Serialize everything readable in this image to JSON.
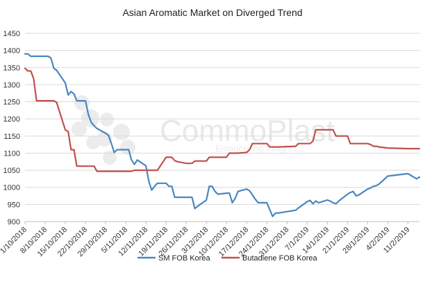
{
  "chart_data": {
    "type": "line",
    "title": "Asian Aromatic Market on Diverged Trend",
    "xlabel": "",
    "ylabel": "",
    "ylim": [
      900,
      1450
    ],
    "yticks": [
      900,
      950,
      1000,
      1050,
      1100,
      1150,
      1200,
      1250,
      1300,
      1350,
      1400,
      1450
    ],
    "xlim": [
      "2018-10-01",
      "2019-02-15"
    ],
    "xtick_labels": [
      "1/10/2018",
      "8/10/2018",
      "15/10/2018",
      "22/10/2018",
      "29/10/2018",
      "5/11/2018",
      "12/11/2018",
      "19/11/2018",
      "26/11/2018",
      "3/12/2018",
      "10/12/2018",
      "17/12/2018",
      "24/12/2018",
      "31/12/2018",
      "7/1/2019",
      "14/1/2019",
      "21/1/2019",
      "28/1/2019",
      "4/2/2019",
      "11/2/2019"
    ],
    "xtick_dates": [
      "2018-10-01",
      "2018-10-08",
      "2018-10-15",
      "2018-10-22",
      "2018-10-29",
      "2018-11-05",
      "2018-11-12",
      "2018-11-19",
      "2018-11-26",
      "2018-12-03",
      "2018-12-10",
      "2018-12-17",
      "2018-12-24",
      "2018-12-31",
      "2019-01-07",
      "2019-01-14",
      "2019-01-21",
      "2019-01-28",
      "2019-02-04",
      "2019-02-11"
    ],
    "grid": true,
    "legend": "bottom",
    "watermark": {
      "text": "CommoPlast",
      "subtext": "Engineering Insights"
    },
    "series": [
      {
        "name": "SM FOB Korea",
        "color": "#4a86c0",
        "points": [
          [
            "2018-10-01",
            1390
          ],
          [
            "2018-10-02",
            1390
          ],
          [
            "2018-10-03",
            1383
          ],
          [
            "2018-10-04",
            1383
          ],
          [
            "2018-10-05",
            1383
          ],
          [
            "2018-10-08",
            1383
          ],
          [
            "2018-10-09",
            1383
          ],
          [
            "2018-10-10",
            1378
          ],
          [
            "2018-10-11",
            1348
          ],
          [
            "2018-10-12",
            1342
          ],
          [
            "2018-10-15",
            1305
          ],
          [
            "2018-10-16",
            1270
          ],
          [
            "2018-10-17",
            1280
          ],
          [
            "2018-10-18",
            1273
          ],
          [
            "2018-10-19",
            1253
          ],
          [
            "2018-10-22",
            1253
          ],
          [
            "2018-10-23",
            1213
          ],
          [
            "2018-10-24",
            1190
          ],
          [
            "2018-10-25",
            1180
          ],
          [
            "2018-10-26",
            1172
          ],
          [
            "2018-10-29",
            1158
          ],
          [
            "2018-10-30",
            1152
          ],
          [
            "2018-10-31",
            1128
          ],
          [
            "2018-11-01",
            1102
          ],
          [
            "2018-11-02",
            1110
          ],
          [
            "2018-11-05",
            1110
          ],
          [
            "2018-11-06",
            1110
          ],
          [
            "2018-11-07",
            1080
          ],
          [
            "2018-11-08",
            1067
          ],
          [
            "2018-11-09",
            1080
          ],
          [
            "2018-11-12",
            1063
          ],
          [
            "2018-11-13",
            1018
          ],
          [
            "2018-11-14",
            992
          ],
          [
            "2018-11-15",
            1003
          ],
          [
            "2018-11-16",
            1012
          ],
          [
            "2018-11-19",
            1012
          ],
          [
            "2018-11-20",
            1003
          ],
          [
            "2018-11-21",
            1003
          ],
          [
            "2018-11-22",
            971
          ],
          [
            "2018-11-23",
            971
          ],
          [
            "2018-11-26",
            971
          ],
          [
            "2018-11-27",
            971
          ],
          [
            "2018-11-28",
            971
          ],
          [
            "2018-11-29",
            938
          ],
          [
            "2018-11-30",
            945
          ],
          [
            "2018-12-03",
            963
          ],
          [
            "2018-12-04",
            1003
          ],
          [
            "2018-12-05",
            1003
          ],
          [
            "2018-12-06",
            988
          ],
          [
            "2018-12-07",
            980
          ],
          [
            "2018-12-10",
            983
          ],
          [
            "2018-12-11",
            983
          ],
          [
            "2018-12-12",
            955
          ],
          [
            "2018-12-13",
            968
          ],
          [
            "2018-12-14",
            988
          ],
          [
            "2018-12-17",
            995
          ],
          [
            "2018-12-18",
            990
          ],
          [
            "2018-12-19",
            978
          ],
          [
            "2018-12-20",
            965
          ],
          [
            "2018-12-21",
            955
          ],
          [
            "2018-12-24",
            955
          ],
          [
            "2018-12-25",
            935
          ],
          [
            "2018-12-26",
            915
          ],
          [
            "2018-12-27",
            925
          ],
          [
            "2018-12-28",
            925
          ],
          [
            "2019-01-03",
            933
          ],
          [
            "2019-01-04",
            940
          ],
          [
            "2019-01-07",
            958
          ],
          [
            "2019-01-08",
            962
          ],
          [
            "2019-01-09",
            952
          ],
          [
            "2019-01-10",
            960
          ],
          [
            "2019-01-11",
            955
          ],
          [
            "2019-01-14",
            963
          ],
          [
            "2019-01-15",
            960
          ],
          [
            "2019-01-16",
            955
          ],
          [
            "2019-01-17",
            952
          ],
          [
            "2019-01-18",
            960
          ],
          [
            "2019-01-21",
            980
          ],
          [
            "2019-01-22",
            985
          ],
          [
            "2019-01-23",
            988
          ],
          [
            "2019-01-24",
            975
          ],
          [
            "2019-01-25",
            978
          ],
          [
            "2019-01-28",
            995
          ],
          [
            "2019-01-29",
            998
          ],
          [
            "2019-01-30",
            1003
          ],
          [
            "2019-01-31",
            1005
          ],
          [
            "2019-02-01",
            1010
          ],
          [
            "2019-02-04",
            1033
          ],
          [
            "2019-02-11",
            1040
          ],
          [
            "2019-02-12",
            1035
          ],
          [
            "2019-02-13",
            1030
          ],
          [
            "2019-02-14",
            1025
          ],
          [
            "2019-02-15",
            1030
          ]
        ]
      },
      {
        "name": "Butadiene FOB Korea",
        "color": "#c0504d",
        "points": [
          [
            "2018-10-01",
            1348
          ],
          [
            "2018-10-02",
            1340
          ],
          [
            "2018-10-03",
            1340
          ],
          [
            "2018-10-04",
            1318
          ],
          [
            "2018-10-05",
            1253
          ],
          [
            "2018-10-08",
            1253
          ],
          [
            "2018-10-09",
            1253
          ],
          [
            "2018-10-10",
            1253
          ],
          [
            "2018-10-11",
            1253
          ],
          [
            "2018-10-12",
            1248
          ],
          [
            "2018-10-15",
            1168
          ],
          [
            "2018-10-16",
            1163
          ],
          [
            "2018-10-17",
            1110
          ],
          [
            "2018-10-18",
            1110
          ],
          [
            "2018-10-19",
            1062
          ],
          [
            "2018-10-22",
            1062
          ],
          [
            "2018-10-23",
            1062
          ],
          [
            "2018-10-24",
            1062
          ],
          [
            "2018-10-25",
            1062
          ],
          [
            "2018-10-26",
            1047
          ],
          [
            "2018-10-29",
            1047
          ],
          [
            "2018-10-30",
            1047
          ],
          [
            "2018-10-31",
            1047
          ],
          [
            "2018-11-01",
            1047
          ],
          [
            "2018-11-02",
            1047
          ],
          [
            "2018-11-05",
            1047
          ],
          [
            "2018-11-06",
            1047
          ],
          [
            "2018-11-07",
            1047
          ],
          [
            "2018-11-08",
            1050
          ],
          [
            "2018-11-09",
            1050
          ],
          [
            "2018-11-12",
            1050
          ],
          [
            "2018-11-13",
            1050
          ],
          [
            "2018-11-14",
            1050
          ],
          [
            "2018-11-15",
            1050
          ],
          [
            "2018-11-16",
            1050
          ],
          [
            "2018-11-19",
            1088
          ],
          [
            "2018-11-20",
            1088
          ],
          [
            "2018-11-21",
            1088
          ],
          [
            "2018-11-22",
            1078
          ],
          [
            "2018-11-23",
            1075
          ],
          [
            "2018-11-26",
            1070
          ],
          [
            "2018-11-27",
            1070
          ],
          [
            "2018-11-28",
            1070
          ],
          [
            "2018-11-29",
            1077
          ],
          [
            "2018-11-30",
            1077
          ],
          [
            "2018-12-03",
            1077
          ],
          [
            "2018-12-04",
            1088
          ],
          [
            "2018-12-05",
            1088
          ],
          [
            "2018-12-06",
            1088
          ],
          [
            "2018-12-07",
            1088
          ],
          [
            "2018-12-10",
            1088
          ],
          [
            "2018-12-11",
            1100
          ],
          [
            "2018-12-12",
            1100
          ],
          [
            "2018-12-13",
            1100
          ],
          [
            "2018-12-14",
            1100
          ],
          [
            "2018-12-17",
            1102
          ],
          [
            "2018-12-18",
            1110
          ],
          [
            "2018-12-19",
            1128
          ],
          [
            "2018-12-20",
            1128
          ],
          [
            "2018-12-21",
            1128
          ],
          [
            "2018-12-24",
            1128
          ],
          [
            "2018-12-25",
            1118
          ],
          [
            "2018-12-26",
            1118
          ],
          [
            "2018-12-27",
            1118
          ],
          [
            "2018-12-28",
            1118
          ],
          [
            "2019-01-03",
            1120
          ],
          [
            "2019-01-04",
            1128
          ],
          [
            "2019-01-07",
            1128
          ],
          [
            "2019-01-08",
            1128
          ],
          [
            "2019-01-09",
            1135
          ],
          [
            "2019-01-10",
            1168
          ],
          [
            "2019-01-11",
            1168
          ],
          [
            "2019-01-14",
            1168
          ],
          [
            "2019-01-15",
            1168
          ],
          [
            "2019-01-16",
            1168
          ],
          [
            "2019-01-17",
            1150
          ],
          [
            "2019-01-18",
            1150
          ],
          [
            "2019-01-21",
            1150
          ],
          [
            "2019-01-22",
            1128
          ],
          [
            "2019-01-23",
            1128
          ],
          [
            "2019-01-24",
            1128
          ],
          [
            "2019-01-25",
            1128
          ],
          [
            "2019-01-28",
            1128
          ],
          [
            "2019-01-29",
            1125
          ],
          [
            "2019-01-30",
            1120
          ],
          [
            "2019-01-31",
            1120
          ],
          [
            "2019-02-01",
            1118
          ],
          [
            "2019-02-04",
            1115
          ],
          [
            "2019-02-11",
            1113
          ],
          [
            "2019-02-15",
            1113
          ]
        ]
      }
    ]
  }
}
